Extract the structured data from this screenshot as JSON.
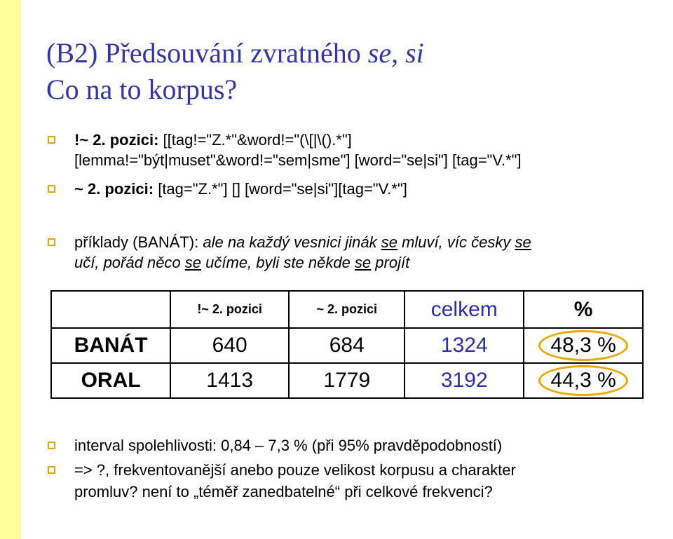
{
  "title": {
    "line1_part1": "(B2) Předsouvání zvratného ",
    "line1_italic": "se, si",
    "line2": "Co na to korpus?"
  },
  "bullets": {
    "b1_bold": "!~ 2. pozici:",
    "b1_rest": " [[tag!=\"Z.*\"&word!=\"(\\[|\\().*\"]",
    "b1_line2": "[lemma!=\"být|muset\"&word!=\"sem|sme\"] [word=\"se|si\"] [tag=\"V.*\"]",
    "b2_bold": "~ 2. pozici:",
    "b2_rest": " [tag=\"Z.*\"] [] [word=\"se|si\"][tag=\"V.*\"]",
    "b3_label": "příklady (BANÁT): ",
    "b3_l1": [
      {
        "t": "ale na každý vesnici jinák ",
        "u": false
      },
      {
        "t": "se",
        "u": true
      },
      {
        "t": " mluví, víc česky ",
        "u": false
      },
      {
        "t": "se",
        "u": true
      }
    ],
    "b3_l2": [
      {
        "t": "učí, pořád něco ",
        "u": false
      },
      {
        "t": "se",
        "u": true
      },
      {
        "t": " učíme, byli ste někde ",
        "u": false
      },
      {
        "t": "se",
        "u": true
      },
      {
        "t": " projít",
        "u": false
      }
    ],
    "b4": "interval spolehlivosti: 0,84 – 7,3 % (při 95% pravděpodobností)",
    "b5_l1": "=> ?, frekventovanější anebo pouze velikost korpusu a charakter",
    "b5_l2": "promluv? není to „téměř zanedbatelné“ při celkové frekvenci?"
  },
  "table": {
    "headers": [
      "",
      "!~ 2. pozici",
      "~ 2. pozici",
      "celkem",
      "%"
    ],
    "rows": [
      {
        "label": "BANÁT",
        "c1": "640",
        "c2": "684",
        "total": "1324",
        "pct": "48,3 %"
      },
      {
        "label": "ORAL",
        "c1": "1413",
        "c2": "1779",
        "total": "3192",
        "pct": "44,3 %"
      }
    ]
  },
  "colors": {
    "title": "#3333b3",
    "sidebar": "#ffff99",
    "bullet": "#e0a800",
    "highlight_circle": "#f0a800",
    "blue_text": "#2b2bb3"
  }
}
